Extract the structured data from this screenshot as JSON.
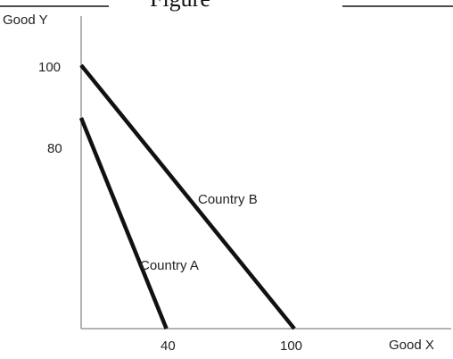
{
  "header": {
    "fragment_text": "Figure"
  },
  "chart_data": {
    "type": "line",
    "title": "",
    "xlabel": "Good X",
    "ylabel": "Good Y",
    "xlim": [
      0,
      100
    ],
    "ylim": [
      0,
      100
    ],
    "x_ticks": [
      "40",
      "100"
    ],
    "y_ticks": [
      "80",
      "100"
    ],
    "grid": false,
    "series": [
      {
        "name": "Country A",
        "points": [
          [
            0,
            80
          ],
          [
            40,
            0
          ]
        ]
      },
      {
        "name": "Country B",
        "points": [
          [
            0,
            100
          ],
          [
            100,
            0
          ]
        ]
      }
    ]
  }
}
